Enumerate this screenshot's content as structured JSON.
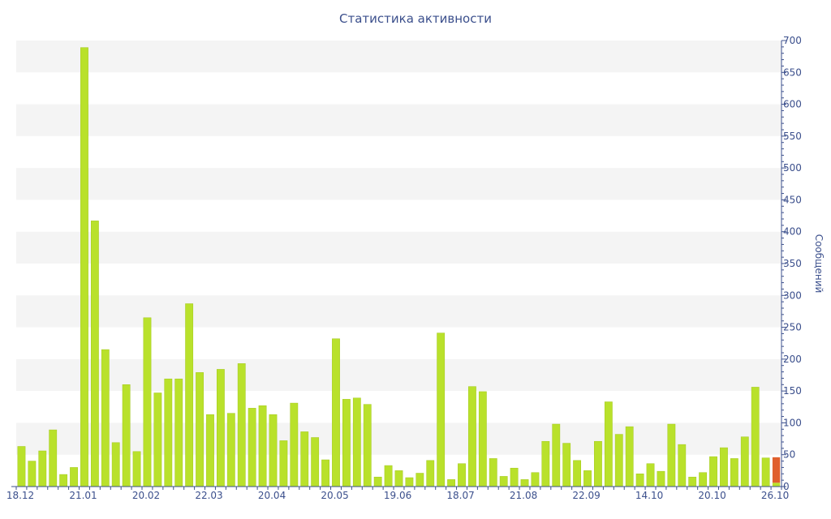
{
  "chart_data": {
    "type": "bar",
    "title": "Статистика активности",
    "ylabel": "Сообщений",
    "xlabel": "",
    "ylim": [
      0,
      700
    ],
    "y_ticks": [
      0,
      50,
      100,
      150,
      200,
      250,
      300,
      350,
      400,
      450,
      500,
      550,
      600,
      650,
      700
    ],
    "x_tick_labels": [
      {
        "label": "18.12",
        "index": 0
      },
      {
        "label": "21.01",
        "index": 6
      },
      {
        "label": "20.02",
        "index": 12
      },
      {
        "label": "22.03",
        "index": 18
      },
      {
        "label": "20.04",
        "index": 24
      },
      {
        "label": "20.05",
        "index": 30
      },
      {
        "label": "19.06",
        "index": 36
      },
      {
        "label": "18.07",
        "index": 42
      },
      {
        "label": "21.08",
        "index": 48
      },
      {
        "label": "22.09",
        "index": 54
      },
      {
        "label": "14.10",
        "index": 60
      },
      {
        "label": "20.10",
        "index": 66
      },
      {
        "label": "26.10",
        "index": 72
      }
    ],
    "values": [
      63,
      40,
      56,
      89,
      19,
      30,
      689,
      417,
      215,
      69,
      160,
      55,
      265,
      147,
      169,
      169,
      287,
      179,
      113,
      184,
      115,
      193,
      123,
      127,
      113,
      72,
      131,
      86,
      77,
      42,
      232,
      137,
      139,
      129,
      15,
      33,
      25,
      14,
      21,
      41,
      241,
      11,
      36,
      157,
      149,
      44,
      16,
      29,
      11,
      22,
      71,
      98,
      68,
      41,
      25,
      71,
      133,
      82,
      94,
      20,
      36,
      24,
      98,
      66,
      15,
      22,
      47,
      61,
      44,
      78,
      156,
      45
    ],
    "highlight": {
      "value": 46,
      "stack_base": 6
    },
    "colors": {
      "bar": "#b9e12b",
      "bar_stroke": "#a3c81e",
      "highlight": "#e0602e",
      "band": "#f4f4f4",
      "axis": "#3b4f8c",
      "text": "#3b4f8c"
    },
    "grid": "horizontal alternating bands",
    "y_axis_position": "right"
  }
}
